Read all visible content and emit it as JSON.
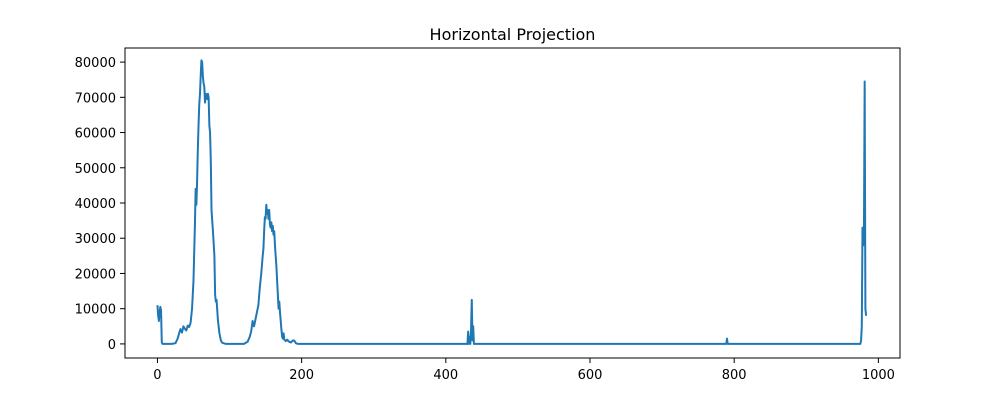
{
  "chart_data": {
    "type": "line",
    "title": "Horizontal Projection",
    "xlabel": "",
    "ylabel": "",
    "xlim": [
      -45,
      1030
    ],
    "ylim": [
      -4000,
      84000
    ],
    "xticks": [
      0,
      200,
      400,
      600,
      800,
      1000
    ],
    "yticks": [
      0,
      10000,
      20000,
      30000,
      40000,
      50000,
      60000,
      70000,
      80000
    ],
    "grid": false,
    "legend": "none",
    "series": [
      {
        "color": "#1f77b4",
        "points": [
          [
            0,
            11000
          ],
          [
            1,
            8000
          ],
          [
            2,
            6500
          ],
          [
            3,
            9000
          ],
          [
            4,
            10500
          ],
          [
            5,
            9500
          ],
          [
            6,
            500
          ],
          [
            7,
            0
          ],
          [
            20,
            0
          ],
          [
            25,
            200
          ],
          [
            28,
            1500
          ],
          [
            30,
            3000
          ],
          [
            32,
            4200
          ],
          [
            34,
            3200
          ],
          [
            36,
            5000
          ],
          [
            38,
            4300
          ],
          [
            40,
            3800
          ],
          [
            42,
            5200
          ],
          [
            44,
            4800
          ],
          [
            46,
            6000
          ],
          [
            48,
            10000
          ],
          [
            50,
            18000
          ],
          [
            51,
            26000
          ],
          [
            52,
            34000
          ],
          [
            53,
            44000
          ],
          [
            54,
            39500
          ],
          [
            55,
            46000
          ],
          [
            56,
            55000
          ],
          [
            57,
            62000
          ],
          [
            58,
            68000
          ],
          [
            59,
            71000
          ],
          [
            60,
            76000
          ],
          [
            61,
            80500
          ],
          [
            62,
            80000
          ],
          [
            63,
            76000
          ],
          [
            64,
            74000
          ],
          [
            65,
            73000
          ],
          [
            66,
            68500
          ],
          [
            67,
            71000
          ],
          [
            68,
            70500
          ],
          [
            69,
            69500
          ],
          [
            70,
            71000
          ],
          [
            71,
            70000
          ],
          [
            72,
            62000
          ],
          [
            73,
            60000
          ],
          [
            74,
            52000
          ],
          [
            75,
            38000
          ],
          [
            77,
            32000
          ],
          [
            79,
            25000
          ],
          [
            80,
            14000
          ],
          [
            81,
            12000
          ],
          [
            82,
            12500
          ],
          [
            84,
            6500
          ],
          [
            86,
            3000
          ],
          [
            88,
            1000
          ],
          [
            90,
            300
          ],
          [
            95,
            0
          ],
          [
            120,
            0
          ],
          [
            125,
            600
          ],
          [
            128,
            2000
          ],
          [
            130,
            3500
          ],
          [
            132,
            6500
          ],
          [
            134,
            5000
          ],
          [
            136,
            7000
          ],
          [
            138,
            9000
          ],
          [
            140,
            11000
          ],
          [
            142,
            16000
          ],
          [
            144,
            20000
          ],
          [
            146,
            25000
          ],
          [
            147,
            27000
          ],
          [
            148,
            32000
          ],
          [
            149,
            36000
          ],
          [
            150,
            35500
          ],
          [
            151,
            39500
          ],
          [
            152,
            37000
          ],
          [
            153,
            38000
          ],
          [
            154,
            35500
          ],
          [
            155,
            38000
          ],
          [
            156,
            34000
          ],
          [
            157,
            33000
          ],
          [
            158,
            34500
          ],
          [
            159,
            32000
          ],
          [
            160,
            33500
          ],
          [
            161,
            31000
          ],
          [
            162,
            32000
          ],
          [
            163,
            28000
          ],
          [
            164,
            25000
          ],
          [
            165,
            22000
          ],
          [
            166,
            18000
          ],
          [
            167,
            14000
          ],
          [
            168,
            10000
          ],
          [
            169,
            12000
          ],
          [
            170,
            9000
          ],
          [
            171,
            6500
          ],
          [
            172,
            4000
          ],
          [
            173,
            2000
          ],
          [
            174,
            1500
          ],
          [
            175,
            3000
          ],
          [
            176,
            1200
          ],
          [
            178,
            800
          ],
          [
            180,
            1200
          ],
          [
            182,
            700
          ],
          [
            185,
            400
          ],
          [
            188,
            1000
          ],
          [
            190,
            900
          ],
          [
            192,
            200
          ],
          [
            195,
            0
          ],
          [
            430,
            0
          ],
          [
            431,
            3500
          ],
          [
            432,
            0
          ],
          [
            433,
            2000
          ],
          [
            434,
            0
          ],
          [
            435,
            4000
          ],
          [
            436,
            12500
          ],
          [
            437,
            1000
          ],
          [
            438,
            5000
          ],
          [
            439,
            0
          ],
          [
            789,
            0
          ],
          [
            790,
            1500
          ],
          [
            791,
            0
          ],
          [
            975,
            0
          ],
          [
            976,
            1000
          ],
          [
            977,
            5000
          ],
          [
            978,
            33000
          ],
          [
            979,
            28000
          ],
          [
            980,
            32000
          ],
          [
            981,
            74500
          ],
          [
            982,
            10000
          ],
          [
            983,
            8000
          ]
        ]
      }
    ]
  }
}
